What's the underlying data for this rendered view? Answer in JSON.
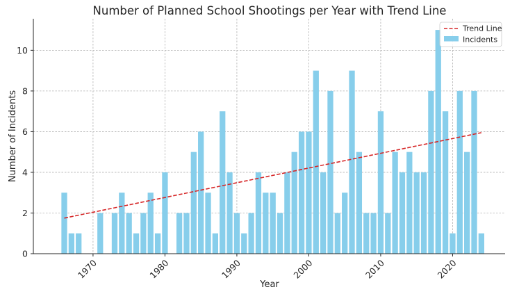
{
  "chart_data": {
    "type": "bar",
    "title": "Number of Planned School Shootings per Year with Trend Line",
    "xlabel": "Year",
    "ylabel": "Number of Incidents",
    "xlim": [
      1961.7,
      2027.3
    ],
    "ylim": [
      0,
      11.55
    ],
    "xticks": [
      1970,
      1980,
      1990,
      2000,
      2010,
      2020
    ],
    "yticks": [
      0,
      2,
      4,
      6,
      8,
      10
    ],
    "grid": true,
    "legend_position": "top-right",
    "colors": {
      "bar": "#87ceeb",
      "trend": "#d62728",
      "axis": "#262626"
    },
    "series": [
      {
        "name": "Incidents",
        "kind": "bar",
        "x": [
          1966,
          1967,
          1968,
          1971,
          1973,
          1974,
          1975,
          1976,
          1977,
          1978,
          1979,
          1980,
          1982,
          1983,
          1984,
          1985,
          1986,
          1987,
          1988,
          1989,
          1990,
          1991,
          1992,
          1993,
          1994,
          1995,
          1996,
          1997,
          1998,
          1999,
          2000,
          2001,
          2002,
          2003,
          2004,
          2005,
          2006,
          2007,
          2008,
          2009,
          2010,
          2011,
          2012,
          2013,
          2014,
          2015,
          2016,
          2017,
          2018,
          2019,
          2020,
          2021,
          2022,
          2023,
          2024
        ],
        "values": [
          3,
          1,
          1,
          2,
          2,
          3,
          2,
          1,
          2,
          3,
          1,
          4,
          2,
          2,
          5,
          6,
          3,
          1,
          7,
          4,
          2,
          1,
          2,
          4,
          3,
          3,
          2,
          4,
          5,
          6,
          6,
          9,
          4,
          8,
          2,
          3,
          9,
          5,
          2,
          2,
          7,
          2,
          5,
          4,
          5,
          4,
          4,
          8,
          11,
          7,
          1,
          8,
          5,
          8,
          1
        ]
      },
      {
        "name": "Trend Line",
        "kind": "line",
        "style": "dashed",
        "x": [
          1966,
          2024
        ],
        "values": [
          1.75,
          5.95
        ]
      }
    ]
  }
}
